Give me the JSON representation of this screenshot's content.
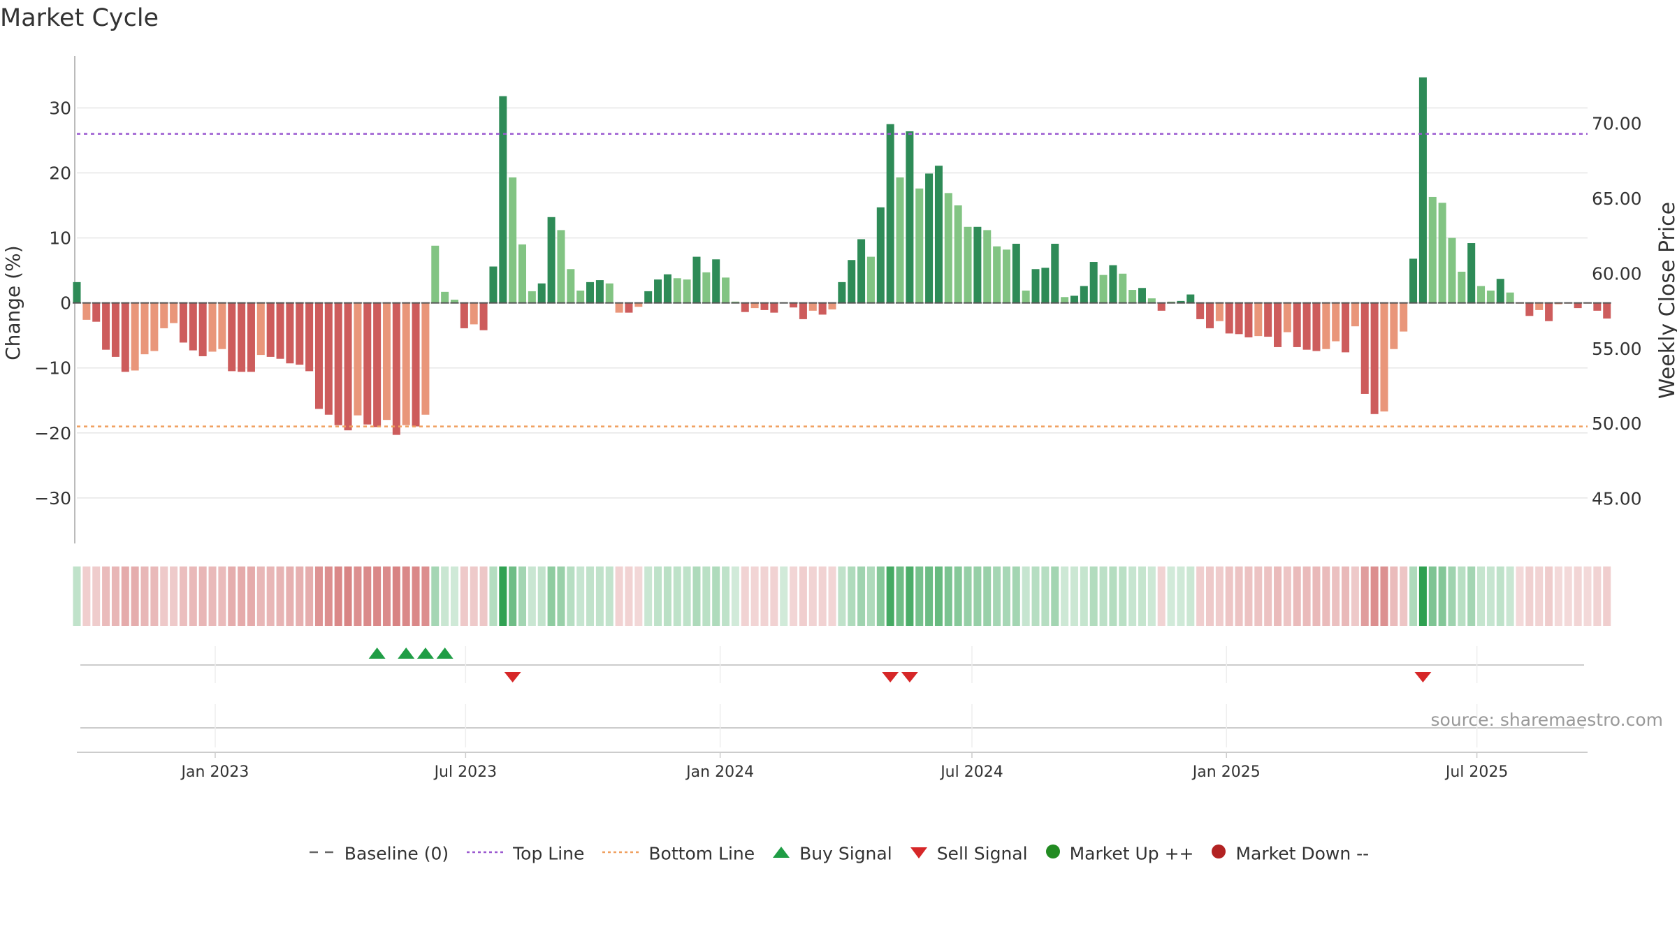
{
  "chart_data": {
    "type": "bar",
    "title": "Market Cycle",
    "ylabel": "Change (%)",
    "y2label": "Weekly Close Price",
    "ylim": [
      -37,
      38
    ],
    "yticks": [
      30,
      20,
      10,
      0,
      -10,
      -20,
      -30
    ],
    "ytick_labels": [
      "30",
      "20",
      "10",
      "0",
      "−10",
      "−20",
      "−30"
    ],
    "y2lim": [
      42,
      74.5
    ],
    "y2ticks": [
      70,
      65,
      60,
      55,
      50,
      45
    ],
    "y2tick_labels": [
      "70.00",
      "65.00",
      "60.00",
      "55.00",
      "50.00",
      "45.00"
    ],
    "x_start": "2022-09-23",
    "x_end": "2025-09-19",
    "x_ticks": [
      {
        "date": "2023-01-01",
        "label": "Jan 2023"
      },
      {
        "date": "2023-07-01",
        "label": "Jul 2023"
      },
      {
        "date": "2024-01-01",
        "label": "Jan 2024"
      },
      {
        "date": "2024-07-01",
        "label": "Jul 2024"
      },
      {
        "date": "2025-01-01",
        "label": "Jan 2025"
      },
      {
        "date": "2025-07-01",
        "label": "Jul 2025"
      }
    ],
    "first_week": "2022-09-23",
    "interval_days": 7,
    "values": [
      3.2,
      -2.6,
      -2.9,
      -7.2,
      -8.3,
      -10.6,
      -10.4,
      -7.9,
      -7.4,
      -3.9,
      -3.1,
      -6.1,
      -7.3,
      -8.2,
      -7.5,
      -7.1,
      -10.5,
      -10.6,
      -10.6,
      -8.0,
      -8.3,
      -8.6,
      -9.3,
      -9.5,
      -10.5,
      -16.3,
      -17.2,
      -18.8,
      -19.6,
      -17.3,
      -18.7,
      -19.1,
      -18.0,
      -20.3,
      -18.8,
      -19.0,
      -17.2,
      8.8,
      1.7,
      0.5,
      -3.9,
      -3.3,
      -4.2,
      5.6,
      31.8,
      19.3,
      9.0,
      1.8,
      3.0,
      13.2,
      11.2,
      5.2,
      1.9,
      3.2,
      3.5,
      3.0,
      -1.5,
      -1.5,
      -0.6,
      1.8,
      3.6,
      4.4,
      3.8,
      3.6,
      7.1,
      4.7,
      6.7,
      3.9,
      0.2,
      -1.4,
      -0.8,
      -1.1,
      -1.5,
      0.1,
      -0.7,
      -2.5,
      -1.2,
      -1.8,
      -1.0,
      3.2,
      6.6,
      9.8,
      7.1,
      14.7,
      27.5,
      19.3,
      26.4,
      17.6,
      19.9,
      21.1,
      16.9,
      15.0,
      11.7,
      11.7,
      11.2,
      8.7,
      8.2,
      9.1,
      1.9,
      5.2,
      5.4,
      9.1,
      0.9,
      1.1,
      2.6,
      6.3,
      4.3,
      5.8,
      4.5,
      2.0,
      2.3,
      0.7,
      -1.2,
      0.2,
      0.3,
      1.3,
      -2.5,
      -3.9,
      -2.8,
      -4.7,
      -4.8,
      -5.3,
      -5.1,
      -5.2,
      -6.8,
      -4.5,
      -6.8,
      -7.2,
      -7.4,
      -7.1,
      -5.9,
      -7.6,
      -3.6,
      -14.0,
      -17.1,
      -16.7,
      -7.1,
      -4.4,
      6.8,
      34.7,
      16.3,
      15.4,
      10.0,
      4.8,
      9.2,
      2.6,
      1.9,
      3.7,
      1.6,
      -0.1,
      -2.0,
      -1.1,
      -2.8,
      -0.2,
      -0.1,
      -0.8,
      -0.1,
      -1.2,
      -2.4
    ],
    "top_line": 26,
    "bottom_line": -19,
    "buy_signals": [
      "2023-04-28",
      "2023-05-19",
      "2023-06-02",
      "2023-06-16"
    ],
    "sell_signals": [
      "2023-08-04",
      "2024-05-03",
      "2024-05-17",
      "2025-05-23"
    ],
    "colors": {
      "up_strong": "#2e8b57",
      "up_weak": "#82c483",
      "down_strong": "#cd5c5c",
      "down_weak": "#e9967a",
      "top_line": "#9b59d0",
      "bottom_line": "#f0a060",
      "buy": "#1f9d45",
      "sell": "#d62728",
      "market_up": "#228b22",
      "market_down": "#b22222"
    },
    "legend": [
      "Baseline (0)",
      "Top Line",
      "Bottom Line",
      "Buy Signal",
      "Sell Signal",
      "Market Up ++",
      "Market Down --"
    ],
    "legend_placement": "bottom-center",
    "grid": true
  },
  "source_text": "source: sharemaestro.com"
}
